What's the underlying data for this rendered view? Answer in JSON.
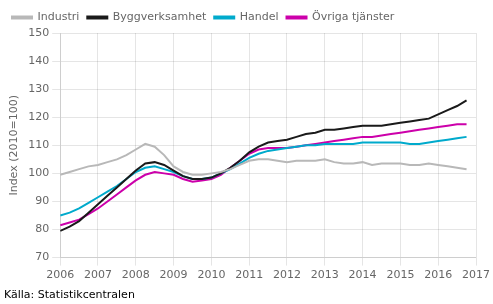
{
  "chart_data": {
    "type": "line",
    "ylabel": "Index (2010=100)",
    "source": "Källa: Statistikcentralen",
    "xlim": [
      2006.0,
      2017.0
    ],
    "xticks": [
      2006,
      2007,
      2008,
      2009,
      2010,
      2011,
      2012,
      2013,
      2014,
      2015,
      2016,
      2017
    ],
    "ylim": [
      70,
      150
    ],
    "yticks": [
      70,
      80,
      90,
      100,
      110,
      120,
      130,
      140,
      150
    ],
    "grid": true,
    "legend": "upper left",
    "x": [
      2006.0,
      2006.25,
      2006.5,
      2006.75,
      2007.0,
      2007.25,
      2007.5,
      2007.75,
      2008.0,
      2008.25,
      2008.5,
      2008.75,
      2009.0,
      2009.25,
      2009.5,
      2009.75,
      2010.0,
      2010.25,
      2010.5,
      2010.75,
      2011.0,
      2011.25,
      2011.5,
      2011.75,
      2012.0,
      2012.25,
      2012.5,
      2012.75,
      2013.0,
      2013.25,
      2013.5,
      2013.75,
      2014.0,
      2014.25,
      2014.5,
      2014.75,
      2015.0,
      2015.25,
      2015.5,
      2015.75,
      2016.0,
      2016.25,
      2016.5,
      2016.75
    ],
    "series": [
      {
        "name": "Industri",
        "color": "#b8b8b8",
        "values": [
          99.5,
          100.5,
          101.5,
          102.5,
          103.0,
          104.0,
          105.0,
          106.5,
          108.5,
          110.5,
          109.5,
          106.5,
          102.5,
          100.5,
          99.5,
          99.5,
          100.0,
          100.5,
          101.5,
          103.0,
          104.5,
          105.0,
          105.0,
          104.5,
          104.0,
          104.5,
          104.5,
          104.5,
          105.0,
          104.0,
          103.5,
          103.5,
          104.0,
          103.0,
          103.5,
          103.5,
          103.5,
          103.0,
          103.0,
          103.5,
          103.0,
          102.5,
          102.0,
          101.5
        ]
      },
      {
        "name": "Byggverksamhet",
        "color": "#1a1a1a",
        "values": [
          79.5,
          81.0,
          83.0,
          86.0,
          89.0,
          92.0,
          95.0,
          98.0,
          101.0,
          103.5,
          104.0,
          103.0,
          101.0,
          99.0,
          98.0,
          98.0,
          98.5,
          100.0,
          102.0,
          104.5,
          107.5,
          109.5,
          111.0,
          111.5,
          112.0,
          113.0,
          114.0,
          114.5,
          115.5,
          115.5,
          116.0,
          116.5,
          117.0,
          117.0,
          117.0,
          117.5,
          118.0,
          118.5,
          119.0,
          119.5,
          121.0,
          122.5,
          124.0,
          126.0
        ]
      },
      {
        "name": "Handel",
        "color": "#00aacc",
        "values": [
          85.0,
          86.0,
          87.5,
          89.5,
          91.5,
          93.5,
          95.5,
          98.0,
          100.5,
          102.0,
          102.5,
          101.5,
          100.5,
          99.0,
          98.0,
          98.0,
          98.5,
          100.0,
          101.5,
          103.5,
          105.5,
          107.0,
          108.0,
          108.5,
          109.0,
          109.5,
          110.0,
          110.0,
          110.5,
          110.5,
          110.5,
          110.5,
          111.0,
          111.0,
          111.0,
          111.0,
          111.0,
          110.5,
          110.5,
          111.0,
          111.5,
          112.0,
          112.5,
          113.0
        ]
      },
      {
        "name": "Övriga tjänster",
        "color": "#cc00aa",
        "values": [
          81.5,
          82.5,
          83.5,
          85.5,
          87.5,
          90.0,
          92.5,
          95.0,
          97.5,
          99.5,
          100.5,
          100.0,
          99.5,
          98.0,
          97.0,
          97.5,
          98.0,
          99.5,
          102.0,
          104.5,
          107.0,
          108.5,
          109.0,
          109.0,
          109.0,
          109.5,
          110.0,
          110.5,
          111.0,
          111.5,
          112.0,
          112.5,
          113.0,
          113.0,
          113.5,
          114.0,
          114.5,
          115.0,
          115.5,
          116.0,
          116.5,
          117.0,
          117.5,
          117.5
        ]
      }
    ]
  }
}
